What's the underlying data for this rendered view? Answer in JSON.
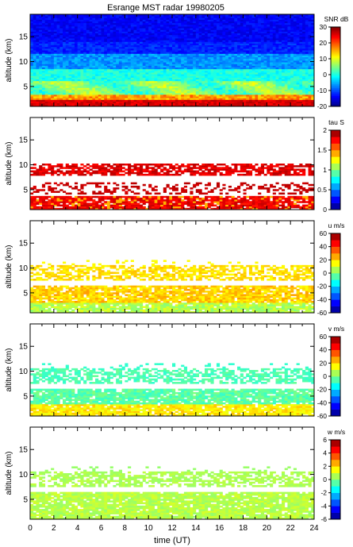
{
  "figure": {
    "title": "Esrange MST radar 19980205",
    "xlabel": "time (UT)",
    "x_ticks": [
      "0",
      "2",
      "4",
      "6",
      "8",
      "10",
      "12",
      "14",
      "16",
      "18",
      "20",
      "22",
      "24"
    ]
  },
  "chart_data": [
    {
      "type": "heatmap",
      "title": "Esrange MST radar 19980205",
      "xlabel": "time (UT)",
      "ylabel": "altitude (km)",
      "xlim": [
        0,
        24
      ],
      "ylim": [
        1,
        19.5
      ],
      "y_ticks": [
        "15",
        "10",
        "5"
      ],
      "colorbar": {
        "label": "SNR dB",
        "range": [
          -20,
          30
        ],
        "ticks": [
          "30",
          "20",
          "10",
          "0",
          "-10",
          "-20"
        ]
      },
      "description_values": {
        "low_alt_snr": 30,
        "high_alt_snr": -15
      }
    },
    {
      "type": "heatmap",
      "xlabel": "time (UT)",
      "ylabel": "altitude (km)",
      "xlim": [
        0,
        24
      ],
      "ylim": [
        1,
        19.5
      ],
      "y_ticks": [
        "15",
        "10",
        "5"
      ],
      "colorbar": {
        "label": "tau S",
        "range": [
          0,
          2
        ],
        "ticks": [
          "2",
          "1.5",
          "1",
          "0.5",
          "0"
        ]
      }
    },
    {
      "type": "heatmap",
      "xlabel": "time (UT)",
      "ylabel": "altitude (km)",
      "xlim": [
        0,
        24
      ],
      "ylim": [
        1,
        19.5
      ],
      "y_ticks": [
        "15",
        "10",
        "5"
      ],
      "colorbar": {
        "label": "u m/s",
        "range": [
          -60,
          60
        ],
        "ticks": [
          "60",
          "40",
          "20",
          "0",
          "-20",
          "-40",
          "-60"
        ]
      }
    },
    {
      "type": "heatmap",
      "xlabel": "time (UT)",
      "ylabel": "altitude (km)",
      "xlim": [
        0,
        24
      ],
      "ylim": [
        1,
        19.5
      ],
      "y_ticks": [
        "15",
        "10",
        "5"
      ],
      "colorbar": {
        "label": "v m/s",
        "range": [
          -60,
          60
        ],
        "ticks": [
          "60",
          "40",
          "20",
          "0",
          "-20",
          "-40",
          "-60"
        ]
      }
    },
    {
      "type": "heatmap",
      "xlabel": "time (UT)",
      "ylabel": "altitude (km)",
      "xlim": [
        0,
        24
      ],
      "ylim": [
        1,
        19.5
      ],
      "y_ticks": [
        "15",
        "10",
        "5"
      ],
      "colorbar": {
        "label": "w m/s",
        "range": [
          -6,
          6
        ],
        "ticks": [
          "6",
          "4",
          "2",
          "0",
          "-2",
          "-4",
          "-6"
        ]
      }
    }
  ]
}
